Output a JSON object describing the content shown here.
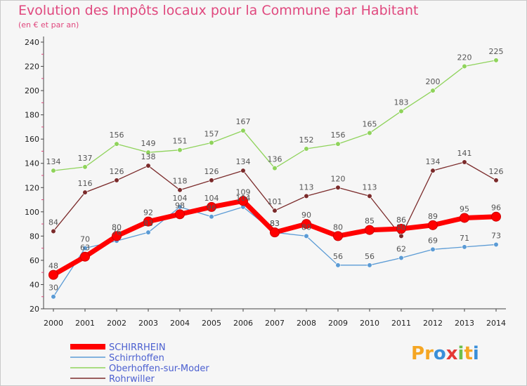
{
  "header": {
    "title": "Evolution des Impôts locaux pour la Commune par Habitant",
    "subtitle": "(en € et par an)"
  },
  "logo": {
    "text": "Proxiti",
    "letters": [
      {
        "ch": "P",
        "color": "#f5a623"
      },
      {
        "ch": "r",
        "color": "#f5a623"
      },
      {
        "ch": "o",
        "color": "#3a8fd9"
      },
      {
        "ch": "x",
        "color": "#e53935"
      },
      {
        "ch": "i",
        "color": "#6cc04a"
      },
      {
        "ch": "t",
        "color": "#f5a623"
      },
      {
        "ch": "i",
        "color": "#3a8fd9"
      }
    ]
  },
  "chart_data": {
    "type": "line",
    "title": "Evolution des Impôts locaux pour la Commune par Habitant",
    "subtitle": "(en € et par an)",
    "xlabel": "",
    "ylabel": "",
    "x": [
      "2000",
      "2001",
      "2002",
      "2003",
      "2004",
      "2005",
      "2006",
      "2007",
      "2008",
      "2009",
      "2010",
      "2011",
      "2012",
      "2013",
      "2014"
    ],
    "ylim": [
      20,
      240
    ],
    "yticks": [
      20,
      40,
      60,
      80,
      100,
      120,
      140,
      160,
      180,
      200,
      220,
      240
    ],
    "grid": false,
    "legend_position": "bottom-left",
    "series": [
      {
        "name": "SCHIRRHEIN",
        "color": "#ff0000",
        "thick": true,
        "values": [
          48,
          63,
          80,
          92,
          98,
          104,
          109,
          83,
          90,
          80,
          85,
          86,
          89,
          95,
          96
        ]
      },
      {
        "name": "Schirrhoffen",
        "color": "#5b9bd5",
        "thick": false,
        "values": [
          30,
          70,
          76,
          83,
          104,
          96,
          104,
          83,
          80,
          56,
          56,
          62,
          69,
          71,
          73
        ]
      },
      {
        "name": "Oberhoffen-sur-Moder",
        "color": "#8fd35b",
        "thick": false,
        "values": [
          134,
          137,
          156,
          149,
          151,
          157,
          167,
          136,
          152,
          156,
          165,
          183,
          200,
          220,
          225
        ]
      },
      {
        "name": "Rohrwiller",
        "color": "#7b2b2b",
        "thick": false,
        "values": [
          84,
          116,
          126,
          138,
          118,
          126,
          134,
          101,
          113,
          120,
          113,
          80,
          134,
          141,
          126
        ]
      }
    ]
  }
}
